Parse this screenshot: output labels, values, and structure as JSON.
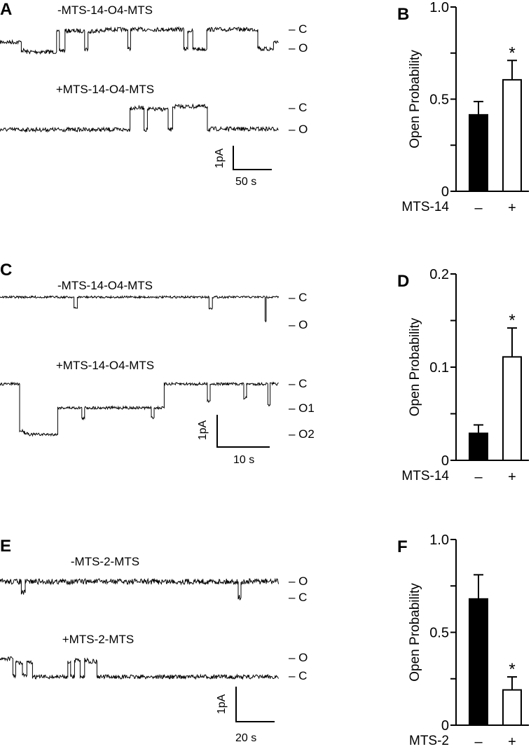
{
  "panels": {
    "A": {
      "letter": "A",
      "trace1_title": "-MTS-14-O4-MTS",
      "trace2_title": "+MTS-14-O4-MTS",
      "trace1_levels": [
        "– C",
        "– O"
      ],
      "trace2_levels": [
        "– C",
        "– O"
      ],
      "scale_current": "1pA",
      "scale_time": "50 s"
    },
    "C": {
      "letter": "C",
      "trace1_title": "-MTS-14-O4-MTS",
      "trace2_title": "+MTS-14-O4-MTS",
      "trace1_levels": [
        "– C",
        "– O"
      ],
      "trace2_levels": [
        "– C",
        "– O1",
        "– O2"
      ],
      "scale_current": "1pA",
      "scale_time": "10 s"
    },
    "E": {
      "letter": "E",
      "trace1_title": "-MTS-2-MTS",
      "trace2_title": "+MTS-2-MTS",
      "trace1_levels": [
        "– O",
        "– C"
      ],
      "trace2_levels": [
        "– O",
        "– C"
      ],
      "scale_current": "1pA",
      "scale_time": "20 s"
    }
  },
  "chart_data": [
    {
      "panel": "B",
      "type": "bar",
      "ylabel": "Open Probability",
      "xlabel": "MTS-14",
      "categories": [
        "–",
        "+"
      ],
      "values": [
        0.415,
        0.605
      ],
      "errors": [
        0.072,
        0.105
      ],
      "fills": [
        "#000000",
        "#ffffff"
      ],
      "significance": [
        "",
        "*"
      ],
      "ylim": [
        0,
        1.0
      ],
      "yticks": [
        0,
        0.25,
        0.5,
        0.75,
        1.0
      ],
      "ytick_labels": [
        "0",
        "",
        "0.5",
        "",
        "1.0"
      ]
    },
    {
      "panel": "D",
      "type": "bar",
      "ylabel": "Open Probability",
      "xlabel": "MTS-14",
      "categories": [
        "–",
        "+"
      ],
      "values": [
        0.029,
        0.111
      ],
      "errors": [
        0.009,
        0.031
      ],
      "fills": [
        "#000000",
        "#ffffff"
      ],
      "significance": [
        "",
        "*"
      ],
      "ylim": [
        0,
        0.2
      ],
      "yticks": [
        0,
        0.05,
        0.1,
        0.15,
        0.2
      ],
      "ytick_labels": [
        "0",
        "",
        "0.1",
        "",
        "0.2"
      ]
    },
    {
      "panel": "F",
      "type": "bar",
      "ylabel": "Open Probability",
      "xlabel": "MTS-2",
      "categories": [
        "–",
        "+"
      ],
      "values": [
        0.68,
        0.19
      ],
      "errors": [
        0.13,
        0.07
      ],
      "fills": [
        "#000000",
        "#ffffff"
      ],
      "significance": [
        "",
        "*"
      ],
      "ylim": [
        0,
        1.0
      ],
      "yticks": [
        0,
        0.25,
        0.5,
        0.75,
        1.0
      ],
      "ytick_labels": [
        "0",
        "",
        "0.5",
        "",
        "1.0"
      ]
    }
  ]
}
